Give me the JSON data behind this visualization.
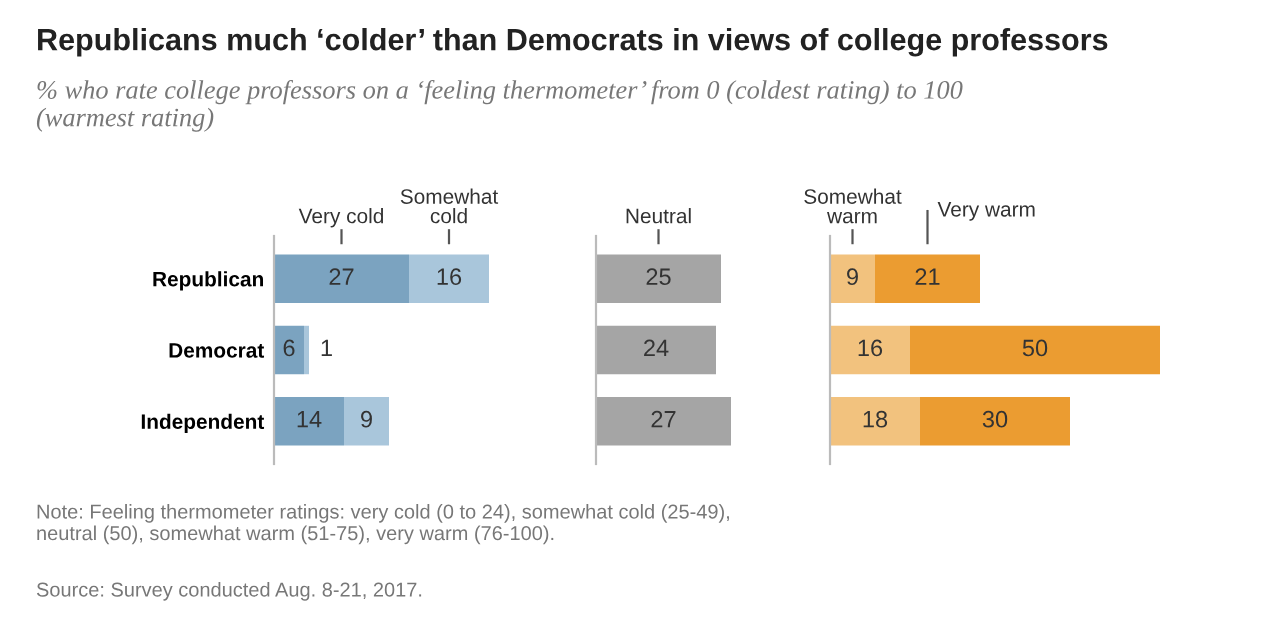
{
  "chart_data": [
    {
      "type": "bar",
      "orientation": "horizontal",
      "stacked": true,
      "data_labels": true,
      "tick_labels": "y",
      "title": "Republicans much ‘colder’ than Democrats in views of college professors",
      "subtitle": "% who rate college professors on a ‘feeling thermometer’ from 0 (coldest rating) to 100 (warmest rating)",
      "annotations": [
        "Note: Feeling thermometer ratings: very cold (0 to 24), somewhat cold (25-49), neutral (50), somewhat warm (51-75), very warm (76-100).",
        "Source: Survey conducted Aug. 8-21, 2017."
      ],
      "categories": [
        "Republican",
        "Democrat",
        "Independent"
      ],
      "series": [
        {
          "name": "Very cold",
          "color": "#7ba3c0",
          "values": [
            27,
            6,
            14
          ]
        },
        {
          "name": "Somewhat cold",
          "color": "#a9c6db",
          "values": [
            16,
            1,
            9
          ]
        }
      ]
    },
    {
      "type": "bar",
      "orientation": "horizontal",
      "stacked": true,
      "data_labels": true,
      "tick_labels": false,
      "series": [
        {
          "name": "Neutral",
          "color": "#a5a5a5",
          "values": [
            25,
            24,
            27
          ]
        }
      ]
    },
    {
      "type": "bar",
      "orientation": "horizontal",
      "stacked": true,
      "data_labels": true,
      "tick_labels": false,
      "series": [
        {
          "name": "Somewhat warm",
          "color": "#f2c27e",
          "values": [
            9,
            16,
            18
          ]
        },
        {
          "name": "Very warm",
          "color": "#eb9c31",
          "values": [
            21,
            50,
            30
          ]
        }
      ]
    }
  ]
}
